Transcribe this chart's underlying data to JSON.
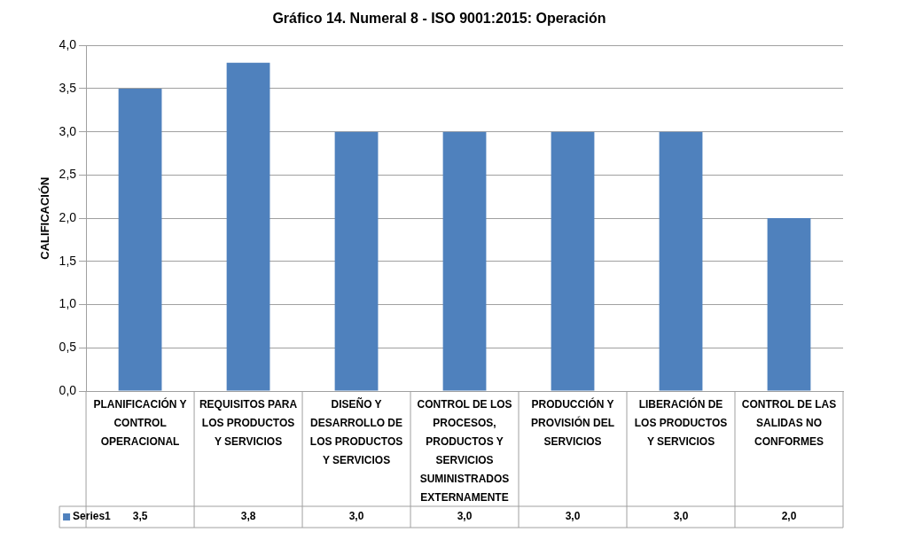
{
  "chart_data": {
    "type": "bar",
    "title": "Gráfico 14. Numeral 8 - ISO 9001:2015: Operación",
    "ylabel": "CALIFICACIÓN",
    "categories": [
      "PLANIFICACIÓN Y CONTROL OPERACIONAL",
      "REQUISITOS PARA LOS PRODUCTOS Y SERVICIOS",
      "DISEÑO Y DESARROLLO DE LOS PRODUCTOS Y SERVICIOS",
      "CONTROL DE LOS PROCESOS, PRODUCTOS Y SERVICIOS SUMINISTRADOS EXTERNAMENTE",
      "PRODUCCIÓN Y PROVISIÓN DEL SERVICIOS",
      "LIBERACIÓN DE LOS PRODUCTOS Y SERVICIOS",
      "CONTROL DE LAS SALIDAS NO CONFORMES"
    ],
    "series": [
      {
        "name": "Series1",
        "color": "#4f81bd",
        "values": [
          3.5,
          3.8,
          3.0,
          3.0,
          3.0,
          3.0,
          2.0
        ],
        "value_labels": [
          "3,5",
          "3,8",
          "3,0",
          "3,0",
          "3,0",
          "3,0",
          "2,0"
        ]
      }
    ],
    "ylim": [
      0,
      4
    ],
    "yticks": [
      {
        "value": 0,
        "label": "0,0"
      },
      {
        "value": 0.5,
        "label": "0,5"
      },
      {
        "value": 1,
        "label": "1,0"
      },
      {
        "value": 1.5,
        "label": "1,5"
      },
      {
        "value": 2,
        "label": "2,0"
      },
      {
        "value": 2.5,
        "label": "2,5"
      },
      {
        "value": 3,
        "label": "3,0"
      },
      {
        "value": 3.5,
        "label": "3,5"
      },
      {
        "value": 4,
        "label": "4,0"
      }
    ],
    "grid": "y",
    "legend": "bottom"
  }
}
